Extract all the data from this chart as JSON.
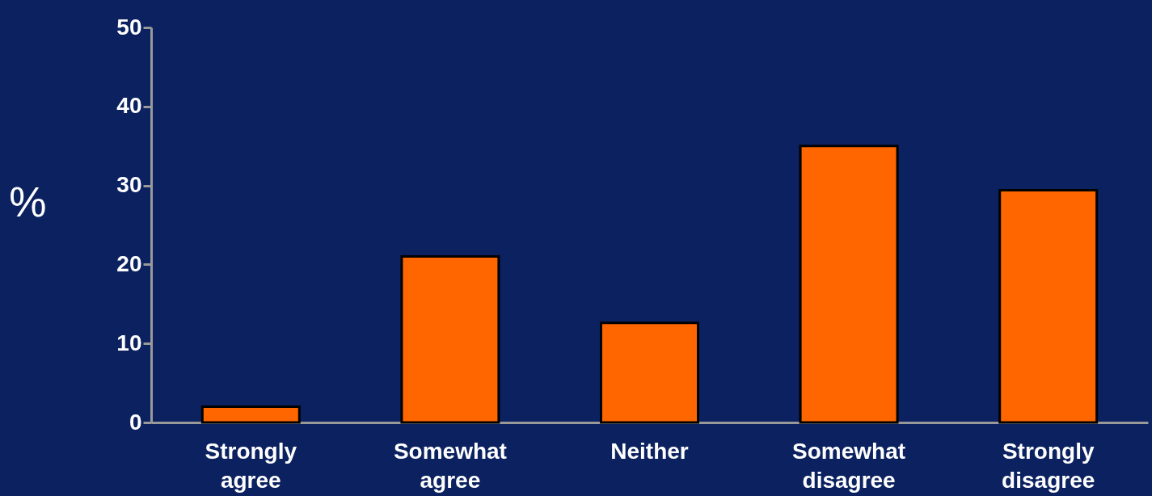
{
  "chart_data": {
    "type": "bar",
    "ylabel": "%",
    "categories": [
      "Strongly agree",
      "Somewhat agree",
      "Neither",
      "Somewhat disagree",
      "Strongly disagree"
    ],
    "values": [
      2,
      21,
      12.6,
      35,
      29.4
    ],
    "color": "#ff6600",
    "ylim": [
      0,
      50
    ],
    "yticks": [
      0,
      10,
      20,
      30,
      40,
      50
    ],
    "grid": false
  }
}
